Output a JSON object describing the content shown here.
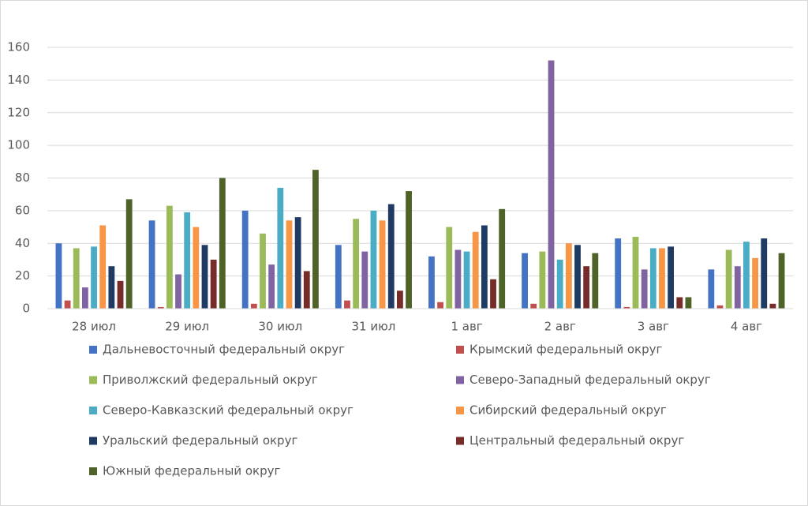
{
  "chart_data": {
    "type": "bar",
    "categories": [
      "28 июл",
      "29 июл",
      "30 июл",
      "31 июл",
      "1 авг",
      "2 авг",
      "3 авг",
      "4 авг"
    ],
    "series": [
      {
        "name": "Дальневосточный федеральный округ",
        "color": "#4472c4",
        "values": [
          40,
          54,
          60,
          39,
          32,
          34,
          43,
          24
        ]
      },
      {
        "name": "Крымский федеральный округ",
        "color": "#c0504d",
        "values": [
          5,
          1,
          3,
          5,
          4,
          3,
          1,
          2
        ]
      },
      {
        "name": "Приволжский федеральный округ",
        "color": "#9bbb59",
        "values": [
          37,
          63,
          46,
          55,
          50,
          35,
          44,
          36
        ]
      },
      {
        "name": "Северо-Западный федеральный округ",
        "color": "#8064a2",
        "values": [
          13,
          21,
          27,
          35,
          36,
          152,
          24,
          26
        ]
      },
      {
        "name": "Северо-Кавказский федеральный округ",
        "color": "#4bacc6",
        "values": [
          38,
          59,
          74,
          60,
          35,
          30,
          37,
          41
        ]
      },
      {
        "name": "Сибирский федеральный округ",
        "color": "#f79646",
        "values": [
          51,
          50,
          54,
          54,
          47,
          40,
          37,
          31
        ]
      },
      {
        "name": "Уральский федеральный округ",
        "color": "#1f3b64",
        "values": [
          26,
          39,
          56,
          64,
          51,
          39,
          38,
          43
        ]
      },
      {
        "name": "Центральный федеральный округ",
        "color": "#772c2a",
        "values": [
          17,
          30,
          23,
          11,
          18,
          26,
          7,
          3
        ]
      },
      {
        "name": "Южный федеральный округ",
        "color": "#4f6228",
        "values": [
          67,
          80,
          85,
          72,
          61,
          34,
          7,
          34
        ]
      }
    ],
    "ylim": [
      0,
      160
    ],
    "yticks": [
      0,
      20,
      40,
      60,
      80,
      100,
      120,
      140,
      160
    ],
    "grid": true
  }
}
